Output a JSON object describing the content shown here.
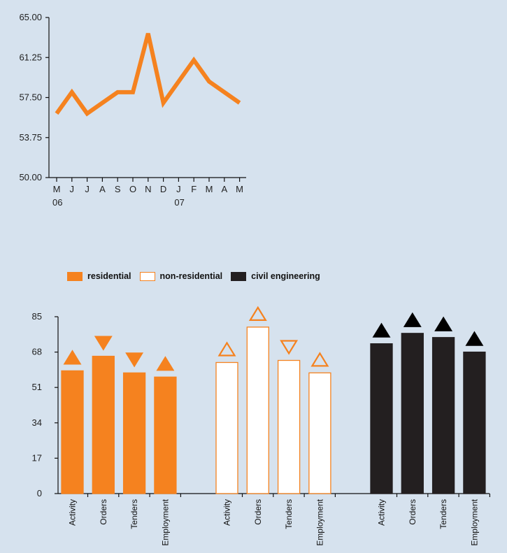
{
  "chart_data": [
    {
      "type": "line",
      "x": [
        "M",
        "J",
        "J",
        "A",
        "S",
        "O",
        "N",
        "D",
        "J",
        "F",
        "M",
        "A",
        "M"
      ],
      "x_year_labels": [
        "06",
        "07"
      ],
      "values": [
        56.0,
        58.0,
        56.0,
        57.0,
        58.0,
        58.0,
        63.5,
        57.0,
        59.0,
        61.0,
        59.0,
        58.0,
        57.0
      ],
      "ylim": [
        50,
        65
      ],
      "yticks": [
        "65.00",
        "61.25",
        "57.50",
        "53.75",
        "50.00"
      ],
      "line_color": "#f5821f"
    },
    {
      "type": "bar",
      "legend": [
        {
          "key": "residential",
          "label": "residential"
        },
        {
          "key": "non_residential",
          "label": "non-residential"
        },
        {
          "key": "civil_engineering",
          "label": "civil engineering"
        }
      ],
      "categories": [
        "Activity",
        "Orders",
        "Tenders",
        "Employment"
      ],
      "ylim": [
        0,
        85
      ],
      "yticks": [
        "85",
        "68",
        "51",
        "34",
        "17",
        "0"
      ],
      "groups": [
        {
          "key": "residential",
          "values": [
            59,
            66,
            58,
            56
          ],
          "trend": [
            "up",
            "down",
            "down",
            "up"
          ],
          "fill": "#f5821f",
          "stroke": "#f5821f",
          "marker_fill": "#f5821f",
          "marker_stroke": "#f5821f"
        },
        {
          "key": "non_residential",
          "values": [
            63,
            80,
            64,
            58
          ],
          "trend": [
            "up",
            "up",
            "down",
            "up"
          ],
          "fill": "#ffffff",
          "stroke": "#f5821f",
          "marker_fill": "none",
          "marker_stroke": "#f5821f"
        },
        {
          "key": "civil_engineering",
          "values": [
            72,
            77,
            75,
            68
          ],
          "trend": [
            "up",
            "up",
            "up",
            "up"
          ],
          "fill": "#231f20",
          "stroke": "#231f20",
          "marker_fill": "#000000",
          "marker_stroke": "#000000"
        }
      ]
    }
  ]
}
